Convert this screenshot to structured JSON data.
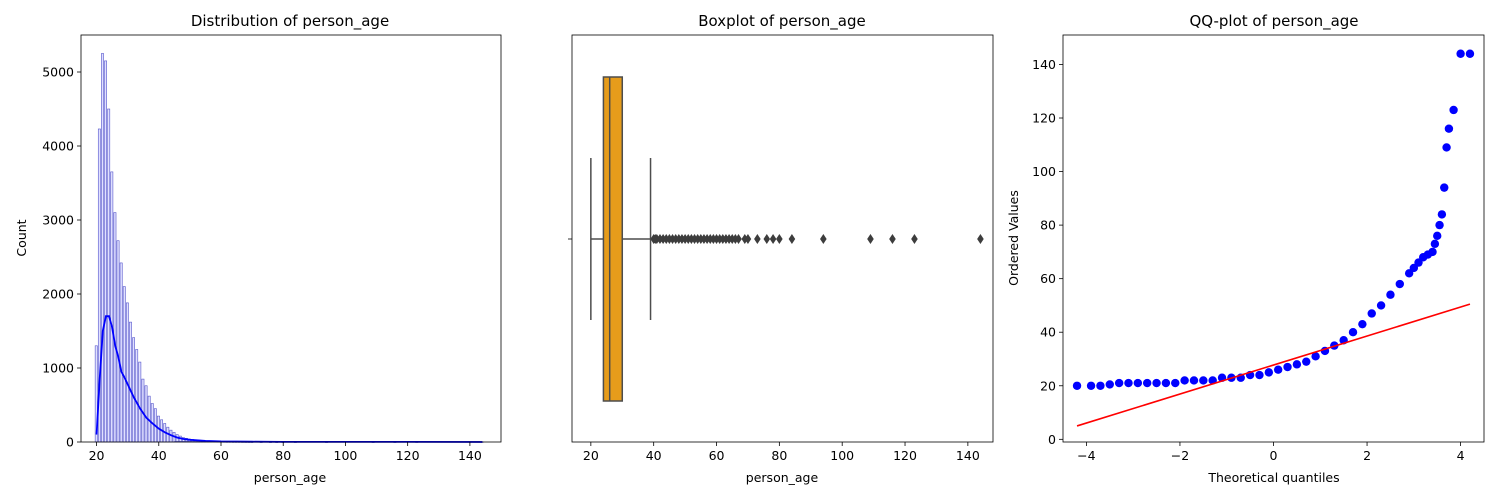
{
  "chart_data": [
    {
      "type": "bar",
      "title": "Distribution of person_age",
      "xlabel": "person_age",
      "ylabel": "Count",
      "xlim": [
        15,
        150
      ],
      "ylim": [
        0,
        5500
      ],
      "xticks": [
        20,
        40,
        60,
        80,
        100,
        120,
        140
      ],
      "yticks": [
        0,
        1000,
        2000,
        3000,
        4000,
        5000
      ],
      "bar_color": "#0000ff",
      "series": [
        {
          "name": "",
          "x": [
            20,
            21,
            22,
            23,
            24,
            25,
            26,
            27,
            28,
            29,
            30,
            31,
            32,
            33,
            34,
            35,
            36,
            37,
            38,
            39,
            40,
            41,
            42,
            43,
            44,
            45,
            46,
            47,
            48,
            49,
            50,
            51,
            52,
            53,
            54,
            55,
            56,
            57,
            58,
            59,
            60,
            61,
            62,
            63,
            64,
            65,
            66,
            67,
            68,
            69,
            70,
            73,
            76,
            78,
            80,
            84,
            94,
            109,
            116,
            123,
            144
          ],
          "values": [
            1300,
            4230,
            5250,
            5150,
            4500,
            3650,
            3100,
            2720,
            2420,
            2100,
            1880,
            1620,
            1410,
            1250,
            1080,
            850,
            760,
            620,
            520,
            450,
            350,
            300,
            250,
            200,
            160,
            130,
            100,
            80,
            60,
            50,
            40,
            35,
            30,
            25,
            20,
            15,
            12,
            10,
            8,
            6,
            5,
            4,
            3,
            3,
            2,
            2,
            2,
            1,
            1,
            1,
            1,
            1,
            1,
            1,
            1,
            1,
            1,
            1,
            1,
            2,
            3
          ]
        }
      ],
      "kde": {
        "color": "#0000ff",
        "x": [
          20,
          21,
          22,
          23,
          24,
          25,
          26,
          27,
          28,
          29,
          30,
          32,
          34,
          36,
          38,
          40,
          42,
          44,
          46,
          48,
          50,
          55,
          60,
          70,
          80,
          100,
          120,
          144
        ],
        "y": [
          100,
          850,
          1500,
          1700,
          1700,
          1550,
          1300,
          1150,
          950,
          870,
          780,
          600,
          450,
          330,
          250,
          180,
          130,
          90,
          60,
          40,
          30,
          15,
          8,
          4,
          2,
          1,
          1,
          0
        ]
      }
    },
    {
      "type": "box",
      "title": "Boxplot of person_age",
      "xlabel": "person_age",
      "xlim": [
        14,
        148
      ],
      "xticks": [
        20,
        40,
        60,
        80,
        100,
        120,
        140
      ],
      "box_color": "#e69c1b",
      "line_color": "#4d4d4d",
      "stats": {
        "whisker_low": 20,
        "q1": 24,
        "median": 26,
        "q3": 30,
        "whisker_high": 39
      },
      "outliers": [
        40,
        40.5,
        41,
        42,
        43,
        44,
        45,
        46,
        47,
        48,
        49,
        50,
        51,
        52,
        53,
        54,
        55,
        56,
        57,
        58,
        59,
        60,
        61,
        62,
        63,
        64,
        65,
        66,
        67,
        69,
        70,
        73,
        76,
        78,
        80,
        84,
        94,
        109,
        116,
        123,
        144
      ]
    },
    {
      "type": "scatter",
      "title": "QQ-plot of person_age",
      "xlabel": "Theoretical quantiles",
      "ylabel": "Ordered Values",
      "xlim": [
        -4.5,
        4.5
      ],
      "ylim": [
        -1,
        151
      ],
      "xticks": [
        -4,
        -2,
        0,
        2,
        4
      ],
      "yticks": [
        0,
        20,
        40,
        60,
        80,
        100,
        120,
        140
      ],
      "point_color": "#0000ff",
      "fit_line": {
        "color": "#ff0000",
        "x": [
          -4.2,
          4.2
        ],
        "y": [
          5,
          50.5
        ]
      },
      "series": [
        {
          "name": "",
          "x": [
            -4.2,
            -3.9,
            -3.7,
            -3.5,
            -3.3,
            -3.1,
            -2.9,
            -2.7,
            -2.5,
            -2.3,
            -2.1,
            -1.9,
            -1.7,
            -1.5,
            -1.3,
            -1.1,
            -0.9,
            -0.7,
            -0.5,
            -0.3,
            -0.1,
            0.1,
            0.3,
            0.5,
            0.7,
            0.9,
            1.1,
            1.3,
            1.5,
            1.7,
            1.9,
            2.1,
            2.3,
            2.5,
            2.7,
            2.9,
            3.0,
            3.1,
            3.2,
            3.3,
            3.4,
            3.45,
            3.5,
            3.55,
            3.6,
            3.65,
            3.7,
            3.75,
            3.85,
            4.0,
            4.2
          ],
          "y": [
            20,
            20,
            20,
            20.5,
            21,
            21,
            21,
            21,
            21,
            21,
            21,
            22,
            22,
            22,
            22,
            23,
            23,
            23,
            24,
            24,
            25,
            26,
            27,
            28,
            29,
            31,
            33,
            35,
            37,
            40,
            43,
            47,
            50,
            54,
            58,
            62,
            64,
            66,
            68,
            69,
            70,
            73,
            76,
            80,
            84,
            94,
            109,
            116,
            123,
            144,
            144
          ]
        }
      ]
    }
  ]
}
